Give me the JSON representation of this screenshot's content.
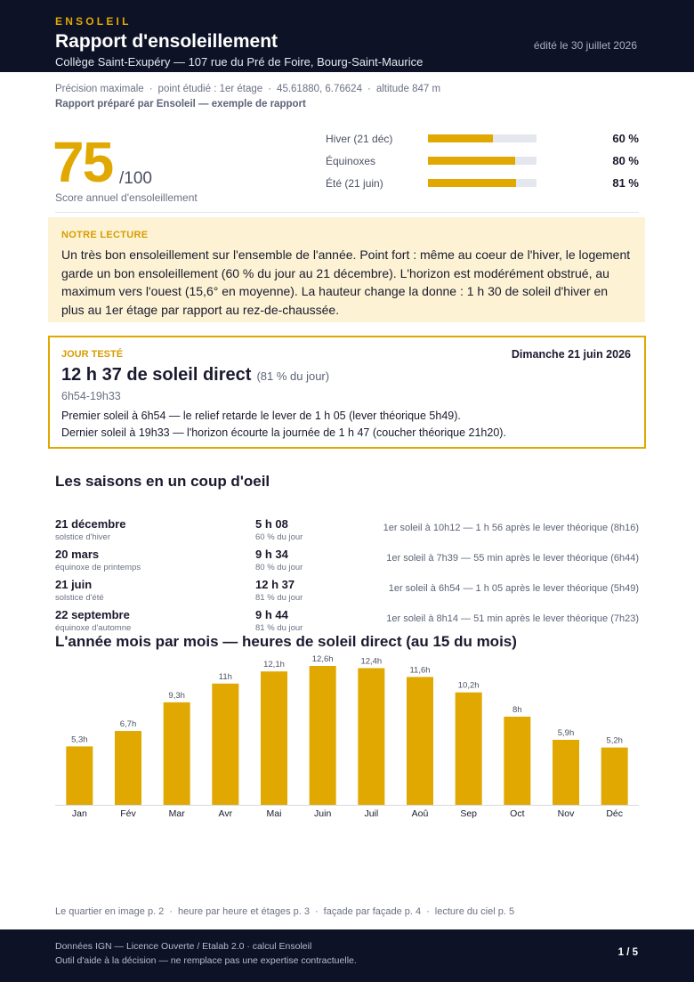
{
  "header": {
    "brand": "ENSOLEIL",
    "title": "Rapport d'ensoleillement",
    "subtitle": "Collège Saint-Exupéry — 107 rue du Pré de Foire, Bourg-Saint-Maurice",
    "edited": "édité le 30 juillet 2026"
  },
  "meta": {
    "items": [
      "Précision maximale",
      "point étudié : 1er étage",
      "45.61880, 6.76624",
      "altitude 847 m"
    ],
    "prepared": "Rapport préparé par Ensoleil — exemple de rapport"
  },
  "score": {
    "value": "75",
    "max": "/100",
    "label": "Score annuel d'ensoleillement"
  },
  "seasons_bars": [
    {
      "label": "Hiver (21 déc)",
      "pct_text": "60 %",
      "fraction": 0.6
    },
    {
      "label": "Équinoxes",
      "pct_text": "80 %",
      "fraction": 0.8
    },
    {
      "label": "Été (21 juin)",
      "pct_text": "81 %",
      "fraction": 0.81
    }
  ],
  "reading": {
    "heading": "NOTRE LECTURE",
    "text": "Un très bon ensoleillement sur l'ensemble de l'année. Point fort : même au coeur de l'hiver, le logement garde un bon ensoleillement (60 % du jour au 21 décembre). L'horizon est modérément obstrué, au maximum vers l'ouest (15,6° en moyenne). La hauteur change la donne : 1 h 30 de soleil d'hiver en plus au 1er étage par rapport au rez-de-chaussée."
  },
  "test_day": {
    "heading": "JOUR TESTÉ",
    "date": "Dimanche 21 juin 2026",
    "duration": "12 h 37 de soleil direct",
    "duration_pct": "(81 % du jour)",
    "range": "6h54-19h33",
    "line1": "Premier soleil à 6h54 — le relief retarde le lever de 1 h 05 (lever théorique 5h49).",
    "line2": "Dernier soleil à 19h33 — l'horizon écourte la journée de 1 h 47 (coucher théorique 21h20)."
  },
  "seasons_section": {
    "title": "Les saisons en un coup d'oeil",
    "rows": [
      {
        "date": "21 décembre",
        "sub": "solstice d'hiver",
        "hours": "5 h 08",
        "pct": "60 % du jour",
        "note": "1er soleil à 10h12 — 1 h 56 après le lever théorique (8h16)"
      },
      {
        "date": "20 mars",
        "sub": "équinoxe de printemps",
        "hours": "9 h 34",
        "pct": "80 % du jour",
        "note": "1er soleil à 7h39 — 55 min après le lever théorique (6h44)"
      },
      {
        "date": "21 juin",
        "sub": "solstice d'été",
        "hours": "12 h 37",
        "pct": "81 % du jour",
        "note": "1er soleil à 6h54 — 1 h 05 après le lever théorique (5h49)"
      },
      {
        "date": "22 septembre",
        "sub": "équinoxe d'automne",
        "hours": "9 h 44",
        "pct": "81 % du jour",
        "note": "1er soleil à 8h14 — 51 min après le lever théorique (7h23)"
      }
    ]
  },
  "chart_title": "L'année mois par mois — heures de soleil direct (au 15 du mois)",
  "chart_data": {
    "type": "bar",
    "categories": [
      "Jan",
      "Fév",
      "Mar",
      "Avr",
      "Mai",
      "Juin",
      "Juil",
      "Aoû",
      "Sep",
      "Oct",
      "Nov",
      "Déc"
    ],
    "values": [
      5.3,
      6.7,
      9.3,
      11,
      12.1,
      12.6,
      12.4,
      11.6,
      10.2,
      8,
      5.9,
      5.2
    ],
    "labels": [
      "5,3h",
      "6,7h",
      "9,3h",
      "11h",
      "12,1h",
      "12,6h",
      "12,4h",
      "11,6h",
      "10,2h",
      "8h",
      "5,9h",
      "5,2h"
    ],
    "title": "L'année mois par mois — heures de soleil direct (au 15 du mois)",
    "ylim": [
      0,
      12.6
    ],
    "color": "#e0a800"
  },
  "footlinks": [
    "Le quartier en image p. 2",
    "heure par heure et étages p. 3",
    "façade par façade p. 4",
    "lecture du ciel p. 5"
  ],
  "footer": {
    "line1": "Données IGN — Licence Ouverte / Etalab 2.0 · calcul Ensoleil",
    "line2": "Outil d'aide à la décision — ne remplace pas une expertise contractuelle.",
    "page": "1 / 5"
  },
  "colors": {
    "accent": "#e0a800",
    "dark": "#0d1226",
    "note_bg": "#fdf3d4"
  }
}
